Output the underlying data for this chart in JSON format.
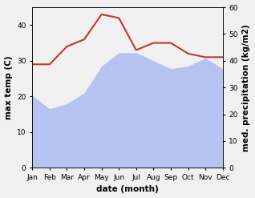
{
  "months": [
    "Jan",
    "Feb",
    "Mar",
    "Apr",
    "May",
    "Jun",
    "Jul",
    "Aug",
    "Sep",
    "Oct",
    "Nov",
    "Dec"
  ],
  "temperature": [
    29,
    29,
    34,
    36,
    43,
    42,
    33,
    35,
    35,
    32,
    31,
    31
  ],
  "precipitation": [
    27,
    22,
    24,
    28,
    38,
    43,
    43,
    40,
    37,
    38,
    41,
    37
  ],
  "temp_color": "#c0392b",
  "precip_color": "#b0bdf0",
  "left_ylim": [
    0,
    45
  ],
  "right_ylim": [
    0,
    60
  ],
  "left_yticks": [
    0,
    10,
    20,
    30,
    40
  ],
  "right_yticks": [
    0,
    10,
    20,
    30,
    40,
    50,
    60
  ],
  "xlabel": "date (month)",
  "ylabel_left": "max temp (C)",
  "ylabel_right": "med. precipitation (kg/m2)",
  "bg_color": "#f0f0f0",
  "label_fontsize": 7.5,
  "tick_fontsize": 6.5
}
